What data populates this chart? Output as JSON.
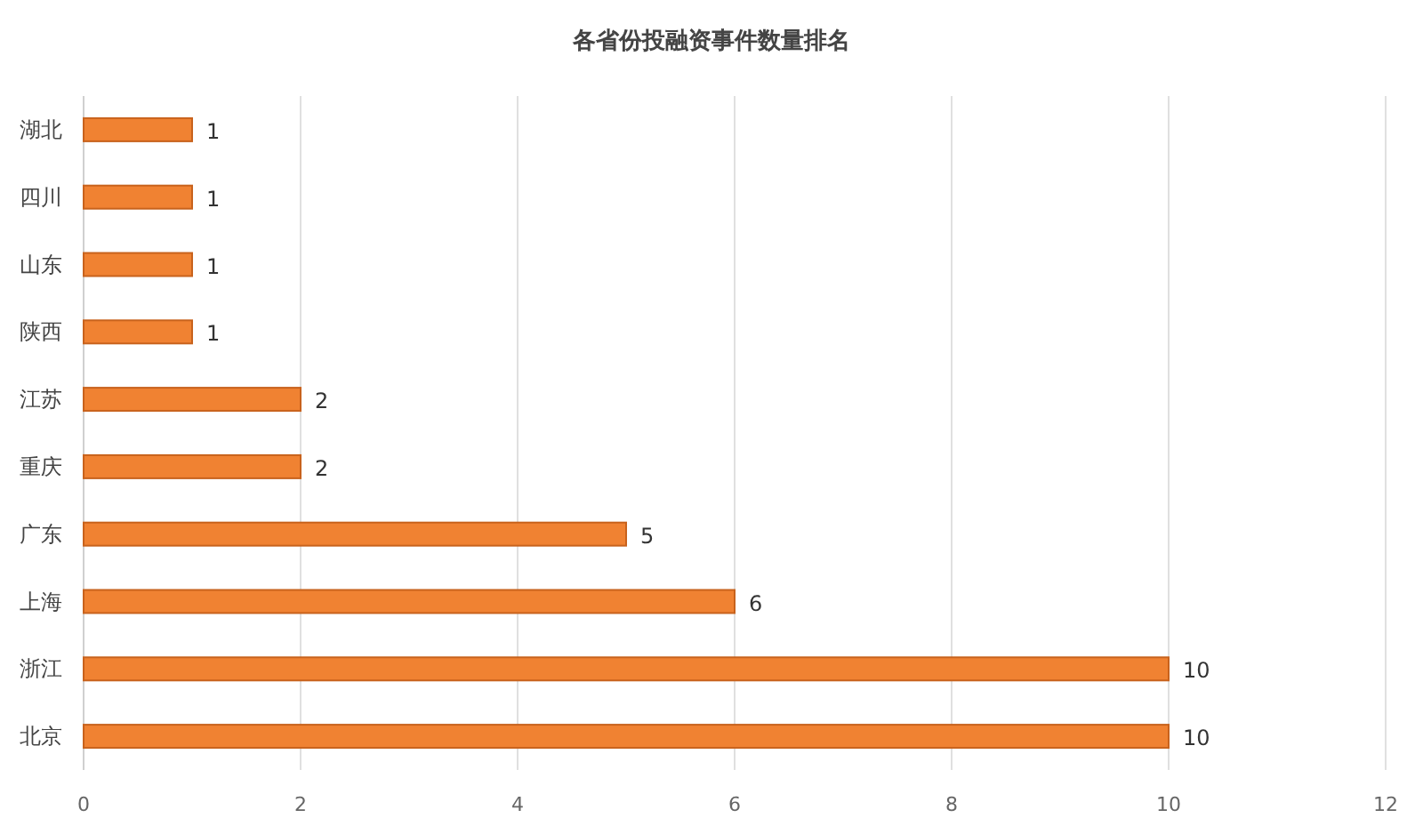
{
  "chart_data": {
    "type": "bar",
    "orientation": "horizontal",
    "title": "各省份投融资事件数量排名",
    "categories": [
      "湖北",
      "四川",
      "山东",
      "陕西",
      "江苏",
      "重庆",
      "广东",
      "上海",
      "浙江",
      "北京"
    ],
    "values": [
      1,
      1,
      1,
      1,
      2,
      2,
      5,
      6,
      10,
      10
    ],
    "color": "#f08232",
    "xlim": [
      0,
      12
    ],
    "xticks": [
      0,
      2,
      4,
      6,
      8,
      10,
      12
    ],
    "grid": "x",
    "data_labels": true
  }
}
